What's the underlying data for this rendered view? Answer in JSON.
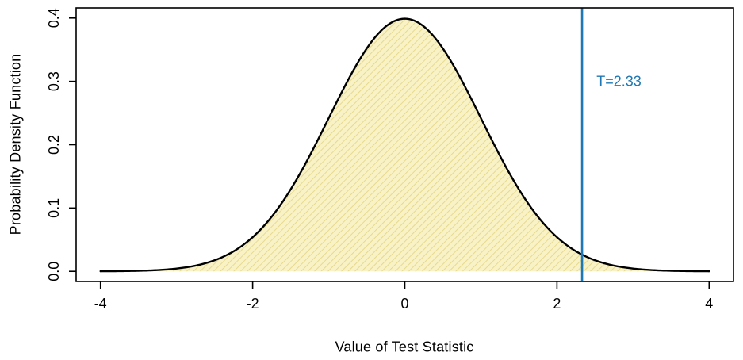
{
  "chart_data": {
    "type": "area",
    "title": "",
    "xlabel": "Value of Test Statistic",
    "ylabel": "Probability Density Function",
    "xlim": [
      -4,
      4
    ],
    "ylim": [
      0,
      0.4
    ],
    "grid": false,
    "legend": "none",
    "x_ticks": {
      "values": [
        -4,
        -2,
        0,
        2,
        4
      ],
      "labels": [
        "-4",
        "-2",
        "0",
        "2",
        "4"
      ]
    },
    "y_ticks": {
      "values": [
        0,
        0.1,
        0.2,
        0.3,
        0.4
      ],
      "labels": [
        "0.0",
        "0.1",
        "0.2",
        "0.3",
        "0.4"
      ]
    },
    "distribution": {
      "name": "standard-normal-pdf",
      "mean": 0,
      "sd": 1
    },
    "series": [
      {
        "name": "pdf",
        "x": [
          -4,
          -3.5,
          -3,
          -2.5,
          -2,
          -1.5,
          -1,
          -0.5,
          0,
          0.5,
          1,
          1.5,
          2,
          2.5,
          3,
          3.5,
          4
        ],
        "y": [
          0.0001,
          0.0009,
          0.0044,
          0.0175,
          0.054,
          0.1295,
          0.242,
          0.3521,
          0.3989,
          0.3521,
          0.242,
          0.1295,
          0.054,
          0.0175,
          0.0044,
          0.0009,
          0.0001
        ]
      }
    ],
    "annotations": {
      "threshold": {
        "value": 2.33,
        "label": "T=2.33",
        "color": "#1e78b4",
        "label_anchor": {
          "x": 2.52,
          "y": 0.3
        }
      }
    },
    "colors": {
      "curve": "#000000",
      "fill_base": "#f8f2c6",
      "hatch": "#e2d482",
      "frame": "#000000",
      "tick_text": "#000000"
    }
  }
}
